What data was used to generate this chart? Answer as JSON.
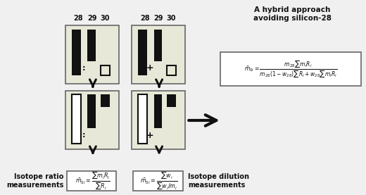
{
  "bg_color": "#e8e8d8",
  "fig_bg": "#f0f0f0",
  "box_border_color": "#666666",
  "bar_black": "#111111",
  "text_color": "#111111",
  "hybrid_title": "A hybrid approach\navoiding silicon-28",
  "formula_hybrid_num": "m_{28}\\sum m_i R_i",
  "formula_hybrid_den": "m_{28}(1-w_{28})\\sum R_i + w_{28}\\sum m_i R_i",
  "formula_ratio_num": "\\sum m_i R_i",
  "formula_ratio_den": "\\sum R_i",
  "formula_dilution_num": "\\sum w_i",
  "formula_dilution_den": "\\sum w_i/m_i",
  "label_left": "Isotope ratio\nmeasurements",
  "label_right": "Isotope dilution\nmeasurements"
}
